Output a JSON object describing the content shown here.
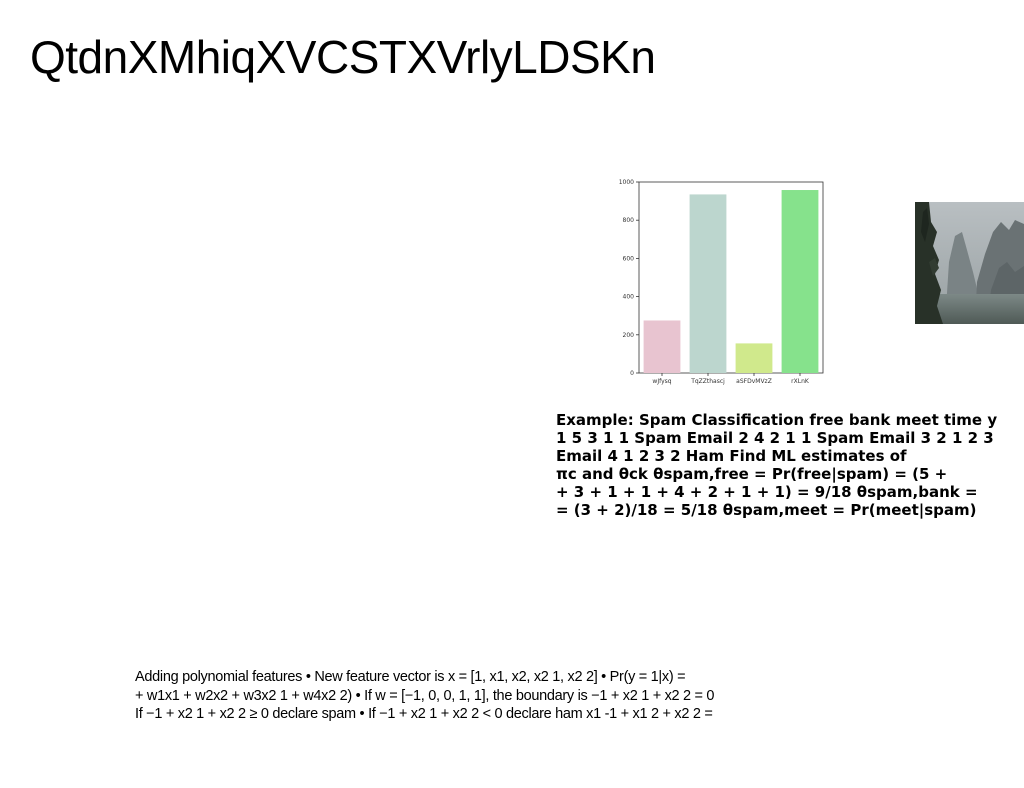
{
  "slide": {
    "title": "QtdnXMhiqXVCSTXVrlyLDSKn"
  },
  "chart_data": {
    "type": "bar",
    "categories": [
      "wJfysq",
      "TqZZthascj",
      "aSFDvMVzZ",
      "rXLnK"
    ],
    "values": [
      275,
      935,
      155,
      958
    ],
    "colors": [
      "#e8c4d0",
      "#bcd6ce",
      "#d0e98c",
      "#86e28c"
    ],
    "yticks": [
      0,
      200,
      400,
      600,
      800,
      1000
    ],
    "ylim": [
      0,
      1000
    ],
    "title": "",
    "xlabel": "",
    "ylabel": ""
  },
  "photo": {
    "name": "mountain-valley-photo",
    "sky_color": "#a4abae",
    "cliff_color": "#6f7779",
    "tree_color": "#283128"
  },
  "example": {
    "lines": [
      "Example: Spam Classification free bank meet time y",
      "1 5 3 1 1 Spam Email 2 4 2 1 1 Spam Email 3 2 1 2 3",
      "Email 4 1 2 3 2 Ham Find ML estimates of",
      "πc and θck θspam,free = Pr(free|spam) = (5 +",
      "+ 3 + 1 + 1 + 4 + 2 + 1 + 1) = 9/18 θspam,bank =",
      "= (3 + 2)/18 = 5/18 θspam,meet = Pr(meet|spam)"
    ]
  },
  "polynomial": {
    "lines": [
      "Adding polynomial features • New feature vector is x = [1, x1, x2, x2 1, x2 2] • Pr(y = 1|x) =",
      "+ w1x1 + w2x2 + w3x2 1 + w4x2 2) • If w = [−1, 0, 0, 1, 1], the boundary is −1 + x2 1 + x2 2 = 0",
      "If −1 + x2 1 + x2 2 ≥ 0 declare spam • If −1 + x2 1 + x2 2 < 0 declare ham x1 -1 + x1 2 + x2 2 ="
    ]
  }
}
